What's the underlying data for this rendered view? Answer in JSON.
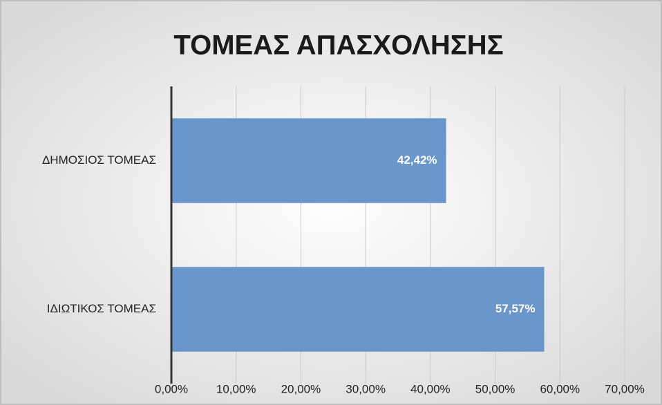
{
  "chart_data": {
    "type": "barh",
    "title": "ΤΟΜΕΑΣ ΑΠΑΣΧΟΛΗΣΗΣ",
    "categories": [
      "ΔΗΜΟΣΙΟΣ ΤΟΜΕΑΣ",
      "ΙΔΙΩΤΙΚΟΣ ΤΟΜΕΑΣ"
    ],
    "values": [
      42.42,
      57.57
    ],
    "value_labels": [
      "42,42%",
      "57,57%"
    ],
    "color": "#6a96c9",
    "xlim": [
      0,
      70
    ],
    "xticks": [
      {
        "value": 0,
        "label": "0,00%"
      },
      {
        "value": 10,
        "label": "10,00%"
      },
      {
        "value": 20,
        "label": "20,00%"
      },
      {
        "value": 30,
        "label": "30,00%"
      },
      {
        "value": 40,
        "label": "40,00%"
      },
      {
        "value": 50,
        "label": "50,00%"
      },
      {
        "value": 60,
        "label": "60,00%"
      },
      {
        "value": 70,
        "label": "70,00%"
      }
    ],
    "grid": true
  }
}
